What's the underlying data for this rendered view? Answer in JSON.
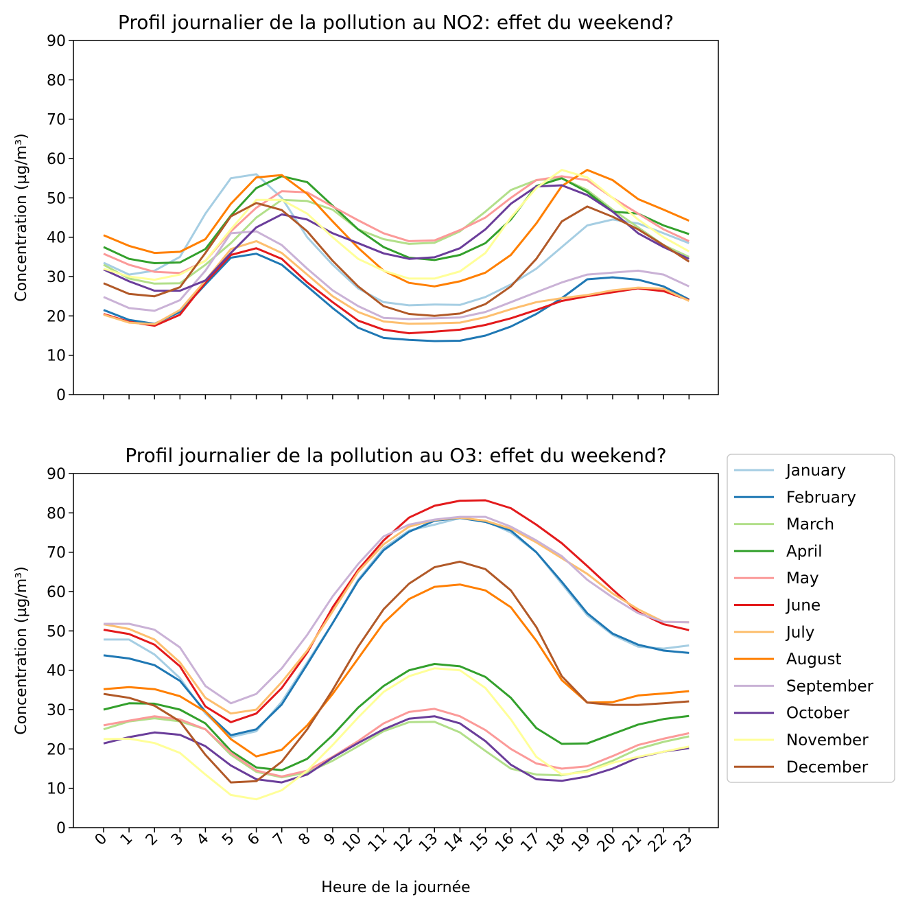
{
  "months": [
    "January",
    "February",
    "March",
    "April",
    "May",
    "June",
    "July",
    "August",
    "September",
    "October",
    "November",
    "December"
  ],
  "colors": {
    "January": "#a6cee3",
    "February": "#1f78b4",
    "March": "#b2df8a",
    "April": "#33a02c",
    "May": "#fb9a99",
    "June": "#e31a1c",
    "July": "#fdbf6f",
    "August": "#ff7f00",
    "September": "#cab2d6",
    "October": "#6a3d9a",
    "November": "#ffff99",
    "December": "#b15928"
  },
  "chart_data": [
    {
      "type": "line",
      "title": "Profil journalier de la pollution au NO2: effet du weekend?",
      "xlabel": "",
      "ylabel": "Concentration (µg/m³)",
      "x": [
        0,
        1,
        2,
        3,
        4,
        5,
        6,
        7,
        8,
        9,
        10,
        11,
        12,
        13,
        14,
        15,
        16,
        17,
        18,
        19,
        20,
        21,
        22,
        23
      ],
      "ylim": [
        0,
        90
      ],
      "yticks": [
        0,
        10,
        20,
        30,
        40,
        50,
        60,
        70,
        80,
        90
      ],
      "series": [
        {
          "name": "January",
          "values": [
            33.5,
            30.5,
            31.5,
            35,
            46,
            55,
            56,
            50,
            40,
            33,
            27,
            23.5,
            22.7,
            22.9,
            22.8,
            24.8,
            28,
            32,
            37.5,
            43,
            44.5,
            43.5,
            41,
            38.5
          ]
        },
        {
          "name": "February",
          "values": [
            21.5,
            19,
            18,
            21,
            28,
            34.8,
            35.8,
            33,
            27.5,
            22,
            17,
            14.4,
            13.9,
            13.6,
            13.7,
            15,
            17.3,
            20.5,
            24.5,
            29.3,
            29.8,
            29.2,
            27.5,
            24.2
          ]
        },
        {
          "name": "March",
          "values": [
            33,
            29.5,
            28.2,
            28.3,
            33,
            38.5,
            45,
            49.5,
            49.2,
            47,
            42,
            39.5,
            38.3,
            38.6,
            41.5,
            46.5,
            52,
            54.5,
            55,
            52,
            47,
            42.5,
            38,
            35
          ]
        },
        {
          "name": "April",
          "values": [
            37.5,
            34.5,
            33.4,
            33.6,
            37,
            45.5,
            52.5,
            55.5,
            54,
            48,
            42,
            37.5,
            34.8,
            34.2,
            35.5,
            38.5,
            44.5,
            53,
            55,
            51.5,
            46.5,
            46,
            43,
            40.8
          ]
        },
        {
          "name": "May",
          "values": [
            35.8,
            33,
            31.2,
            30.9,
            34,
            41.5,
            47.5,
            51.7,
            51.4,
            47.8,
            44.3,
            41,
            39,
            39.2,
            41.8,
            45,
            50,
            54.5,
            55.5,
            54.5,
            50,
            46,
            42,
            39
          ]
        },
        {
          "name": "June",
          "values": [
            20.5,
            18.5,
            17.5,
            20.3,
            28.5,
            35.5,
            37.2,
            34.5,
            28.5,
            23.5,
            18.8,
            16.5,
            15.6,
            16,
            16.5,
            17.7,
            19.4,
            21.5,
            23.8,
            25,
            26,
            27,
            26.3,
            24
          ]
        },
        {
          "name": "July",
          "values": [
            20.3,
            18.3,
            17.9,
            21.5,
            29,
            37,
            39,
            36,
            30.5,
            25,
            21,
            18.6,
            18,
            18.1,
            18.3,
            19.7,
            21.7,
            23.5,
            24.5,
            25.3,
            26.5,
            27.2,
            26.9,
            23.8
          ]
        },
        {
          "name": "August",
          "values": [
            40.5,
            37.8,
            36,
            36.3,
            39.5,
            48.5,
            55.2,
            55.8,
            51,
            44,
            37.3,
            31.5,
            28.4,
            27.5,
            28.8,
            31,
            35.5,
            43.5,
            53,
            57.1,
            54.5,
            49.7,
            47,
            44.2
          ]
        },
        {
          "name": "September",
          "values": [
            24.8,
            22,
            21.3,
            24,
            31.5,
            41,
            41.5,
            38,
            32,
            26.5,
            22.5,
            19.5,
            19.2,
            19.4,
            19.6,
            21,
            23.5,
            26,
            28.5,
            30.5,
            31,
            31.5,
            30.5,
            27.5
          ]
        },
        {
          "name": "October",
          "values": [
            31.8,
            28.8,
            26.4,
            26.4,
            29,
            36,
            42.5,
            45.8,
            44.5,
            41,
            38.5,
            35.9,
            34.5,
            34.9,
            37.2,
            42,
            48.5,
            52.9,
            53.2,
            50.7,
            46.5,
            41,
            37.5,
            34.5
          ]
        },
        {
          "name": "November",
          "values": [
            32,
            30,
            29.2,
            30.5,
            34,
            42,
            49.5,
            49.5,
            46,
            40,
            34.5,
            31.5,
            29.5,
            29.5,
            31.3,
            36,
            45,
            52.5,
            57.1,
            55.2,
            50,
            44.5,
            40,
            36.4
          ]
        },
        {
          "name": "December",
          "values": [
            28.3,
            25.6,
            25,
            27.3,
            36,
            45.3,
            48.7,
            46.9,
            41.5,
            34,
            27.5,
            22.5,
            20.5,
            20,
            20.6,
            23,
            27.5,
            34.5,
            44,
            47.8,
            45.2,
            42,
            38,
            33.8
          ]
        }
      ]
    },
    {
      "type": "line",
      "title": "Profil journalier de la pollution au O3: effet du weekend?",
      "xlabel": "Heure de la journée",
      "ylabel": "Concentration (µg/m³)",
      "x": [
        0,
        1,
        2,
        3,
        4,
        5,
        6,
        7,
        8,
        9,
        10,
        11,
        12,
        13,
        14,
        15,
        16,
        17,
        18,
        19,
        20,
        21,
        22,
        23
      ],
      "ylim": [
        0,
        90
      ],
      "yticks": [
        0,
        10,
        20,
        30,
        40,
        50,
        60,
        70,
        80,
        90
      ],
      "legend": "outside-right",
      "series": [
        {
          "name": "January",
          "values": [
            47.8,
            47.8,
            44,
            38,
            29,
            23,
            24.5,
            32,
            42,
            52,
            63,
            71,
            75.5,
            77,
            78.7,
            78,
            75,
            70,
            62,
            54,
            49,
            46,
            45.5,
            46.3
          ]
        },
        {
          "name": "February",
          "values": [
            43.8,
            43,
            41.3,
            37.3,
            29.5,
            23.5,
            25,
            31.3,
            41.5,
            52,
            62.7,
            70.5,
            75.2,
            78,
            78.7,
            77.7,
            75.5,
            70,
            62.5,
            54.5,
            49.3,
            46.5,
            45,
            44.4
          ]
        },
        {
          "name": "March",
          "values": [
            25,
            27,
            27.8,
            27,
            25,
            18.5,
            14.2,
            12.8,
            14,
            17,
            20.7,
            24.5,
            26.8,
            26.9,
            24.2,
            19.5,
            15,
            13.5,
            13.3,
            14.5,
            17,
            20,
            21.8,
            23.2
          ]
        },
        {
          "name": "April",
          "values": [
            30,
            31.6,
            31.5,
            30,
            26.5,
            19.5,
            15.3,
            14.6,
            17.5,
            23.5,
            30.5,
            36,
            40,
            41.6,
            41,
            38.3,
            33,
            25.3,
            21.3,
            21.4,
            23.8,
            26.2,
            27.6,
            28.4
          ]
        },
        {
          "name": "May",
          "values": [
            26,
            27.2,
            28.3,
            27.5,
            25,
            19,
            14.5,
            13,
            14.5,
            18,
            22,
            26.5,
            29.4,
            30.2,
            28.3,
            24.8,
            20,
            16.3,
            15,
            15.6,
            18.2,
            21,
            22.6,
            24
          ]
        },
        {
          "name": "June",
          "values": [
            50.3,
            49.2,
            46.5,
            41,
            30.8,
            26.8,
            29,
            35.5,
            44.5,
            56,
            65.5,
            73,
            78.8,
            81.8,
            83.1,
            83.2,
            81.2,
            77,
            72.3,
            66.5,
            60.5,
            54.8,
            51.7,
            50.2
          ]
        },
        {
          "name": "July",
          "values": [
            51.7,
            50.5,
            47.8,
            42,
            33,
            29,
            30,
            37,
            45,
            55,
            65,
            72,
            76.5,
            78.2,
            78.8,
            78,
            76,
            72.5,
            68.5,
            64.5,
            59.5,
            55.5,
            52.3,
            52.2
          ]
        },
        {
          "name": "August",
          "values": [
            35.2,
            35.7,
            35.2,
            33.4,
            29.5,
            22.5,
            18.1,
            19.8,
            26,
            34,
            43,
            52,
            58.1,
            61.2,
            61.8,
            60.3,
            56,
            47.5,
            37.5,
            31.8,
            31.9,
            33.6,
            34.1,
            34.7
          ]
        },
        {
          "name": "September",
          "values": [
            51.8,
            51.8,
            50.3,
            45.8,
            36,
            31.6,
            34,
            40.5,
            49,
            58.8,
            67,
            74,
            77,
            78.3,
            79,
            79,
            76.5,
            73,
            69,
            63,
            58.5,
            54.5,
            52.3,
            52.2
          ]
        },
        {
          "name": "October",
          "values": [
            21.4,
            23,
            24.2,
            23.6,
            20.7,
            15.8,
            12.3,
            11.5,
            13.5,
            17.8,
            21.5,
            25,
            27.7,
            28.3,
            26.5,
            22,
            16,
            12.3,
            11.9,
            13,
            15,
            17.8,
            19.3,
            20.2
          ]
        },
        {
          "name": "November",
          "values": [
            22.5,
            22.6,
            21.5,
            19,
            13.5,
            8.3,
            7.2,
            9.5,
            14.5,
            21,
            28,
            34.5,
            38.5,
            40.5,
            40,
            35.5,
            27.5,
            18,
            13.5,
            14.2,
            16.5,
            18,
            19.3,
            20.6
          ]
        },
        {
          "name": "December",
          "values": [
            34,
            33,
            31,
            27,
            18.5,
            11.5,
            11.8,
            16.8,
            25,
            35,
            46,
            55.5,
            62,
            66.2,
            67.6,
            65.7,
            60.3,
            51,
            38.5,
            31.8,
            31.2,
            31.2,
            31.6,
            32.1
          ]
        }
      ]
    }
  ]
}
